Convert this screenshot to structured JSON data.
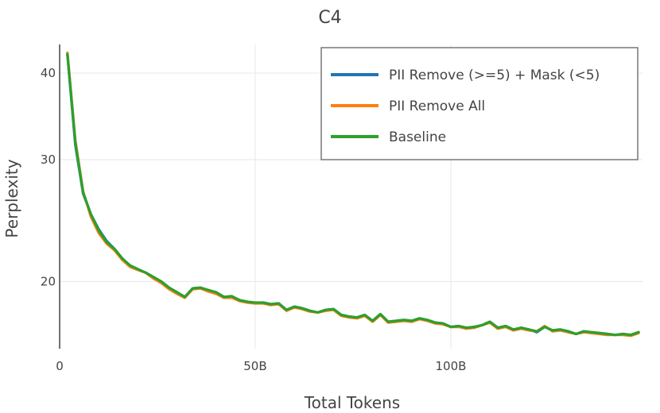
{
  "chart_data": {
    "type": "line",
    "title": "C4",
    "xlabel": "Total Tokens",
    "ylabel": "Perplexity",
    "xlim": [
      0,
      149
    ],
    "ylim": [
      16,
      44
    ],
    "y_scale": "log",
    "grid": true,
    "legend_position": "top-right",
    "x_ticks": [
      {
        "value": 0,
        "label": "0"
      },
      {
        "value": 50,
        "label": "50B"
      },
      {
        "value": 100,
        "label": "100B"
      }
    ],
    "y_ticks": [
      {
        "value": 20,
        "label": "20"
      },
      {
        "value": 30,
        "label": "30"
      },
      {
        "value": 40,
        "label": "40"
      }
    ],
    "series": [
      {
        "name": "PII Remove (>=5) + Mask (<5)",
        "color": "#1f77b4",
        "x": [
          2,
          4,
          6,
          8,
          10,
          12,
          14,
          16,
          18,
          20,
          22,
          24,
          26,
          28,
          30,
          32,
          34,
          36,
          38,
          40,
          42,
          44,
          46,
          48,
          50,
          52,
          54,
          56,
          58,
          60,
          62,
          64,
          66,
          68,
          70,
          72,
          74,
          76,
          78,
          80,
          82,
          84,
          86,
          88,
          90,
          92,
          94,
          96,
          98,
          100,
          102,
          104,
          106,
          108,
          110,
          112,
          114,
          116,
          118,
          120,
          122,
          124,
          126,
          128,
          130,
          132,
          134,
          136,
          138,
          140,
          142,
          144,
          146,
          148
        ],
        "y": [
          42.5,
          31.5,
          26.8,
          25.0,
          23.8,
          22.9,
          22.3,
          21.6,
          21.0,
          20.8,
          20.6,
          20.3,
          20.0,
          19.6,
          19.3,
          19.0,
          19.55,
          19.6,
          19.4,
          19.3,
          19.0,
          19.0,
          18.8,
          18.7,
          18.6,
          18.65,
          18.55,
          18.6,
          18.2,
          18.4,
          18.3,
          18.15,
          18.05,
          18.2,
          18.25,
          17.9,
          17.8,
          17.75,
          17.9,
          17.55,
          17.95,
          17.5,
          17.55,
          17.6,
          17.55,
          17.7,
          17.6,
          17.45,
          17.4,
          17.2,
          17.25,
          17.15,
          17.2,
          17.3,
          17.5,
          17.15,
          17.25,
          17.05,
          17.15,
          17.05,
          16.9,
          17.2,
          17.0,
          17.05,
          16.95,
          16.8,
          16.95,
          16.9,
          16.85,
          16.8,
          16.75,
          16.8,
          16.75,
          16.9
        ]
      },
      {
        "name": "PII Remove All",
        "color": "#ff7f0e",
        "x": [
          2,
          4,
          6,
          8,
          10,
          12,
          14,
          16,
          18,
          20,
          22,
          24,
          26,
          28,
          30,
          32,
          34,
          36,
          38,
          40,
          42,
          44,
          46,
          48,
          50,
          52,
          54,
          56,
          58,
          60,
          62,
          64,
          66,
          68,
          70,
          72,
          74,
          76,
          78,
          80,
          82,
          84,
          86,
          88,
          90,
          92,
          94,
          96,
          98,
          100,
          102,
          104,
          106,
          108,
          110,
          112,
          114,
          116,
          118,
          120,
          122,
          124,
          126,
          128,
          130,
          132,
          134,
          136,
          138,
          140,
          142,
          144,
          146,
          148
        ],
        "y": [
          42.8,
          32.0,
          27.0,
          24.8,
          23.5,
          22.7,
          22.2,
          21.5,
          21.0,
          20.8,
          20.6,
          20.2,
          19.9,
          19.5,
          19.2,
          18.95,
          19.5,
          19.55,
          19.35,
          19.2,
          18.95,
          18.95,
          18.75,
          18.65,
          18.6,
          18.6,
          18.5,
          18.55,
          18.15,
          18.35,
          18.25,
          18.1,
          18.05,
          18.15,
          18.2,
          17.85,
          17.75,
          17.7,
          17.85,
          17.5,
          17.9,
          17.45,
          17.5,
          17.55,
          17.5,
          17.65,
          17.55,
          17.4,
          17.35,
          17.2,
          17.2,
          17.1,
          17.15,
          17.3,
          17.45,
          17.1,
          17.2,
          17.0,
          17.1,
          17.0,
          16.95,
          17.25,
          16.95,
          17.0,
          16.9,
          16.8,
          16.9,
          16.85,
          16.8,
          16.75,
          16.75,
          16.75,
          16.7,
          16.85
        ]
      },
      {
        "name": "Baseline",
        "color": "#2ca02c",
        "x": [
          2,
          4,
          6,
          8,
          10,
          12,
          14,
          16,
          18,
          20,
          22,
          24,
          26,
          28,
          30,
          32,
          34,
          36,
          38,
          40,
          42,
          44,
          46,
          48,
          50,
          52,
          54,
          56,
          58,
          60,
          62,
          64,
          66,
          68,
          70,
          72,
          74,
          76,
          78,
          80,
          82,
          84,
          86,
          88,
          90,
          92,
          94,
          96,
          98,
          100,
          102,
          104,
          106,
          108,
          110,
          112,
          114,
          116,
          118,
          120,
          122,
          124,
          126,
          128,
          130,
          132,
          134,
          136,
          138,
          140,
          142,
          144,
          146,
          148
        ],
        "y": [
          42.6,
          31.8,
          26.9,
          25.0,
          23.7,
          22.8,
          22.3,
          21.6,
          21.1,
          20.85,
          20.6,
          20.3,
          20.0,
          19.6,
          19.3,
          19.0,
          19.55,
          19.6,
          19.45,
          19.3,
          19.0,
          19.05,
          18.8,
          18.7,
          18.65,
          18.65,
          18.55,
          18.6,
          18.2,
          18.4,
          18.3,
          18.15,
          18.05,
          18.2,
          18.25,
          17.9,
          17.8,
          17.75,
          17.9,
          17.55,
          17.95,
          17.5,
          17.55,
          17.6,
          17.55,
          17.7,
          17.6,
          17.45,
          17.4,
          17.2,
          17.25,
          17.15,
          17.2,
          17.3,
          17.5,
          17.15,
          17.25,
          17.05,
          17.15,
          17.05,
          16.95,
          17.2,
          17.0,
          17.05,
          16.95,
          16.8,
          16.95,
          16.9,
          16.85,
          16.8,
          16.75,
          16.8,
          16.75,
          16.9
        ]
      }
    ]
  }
}
